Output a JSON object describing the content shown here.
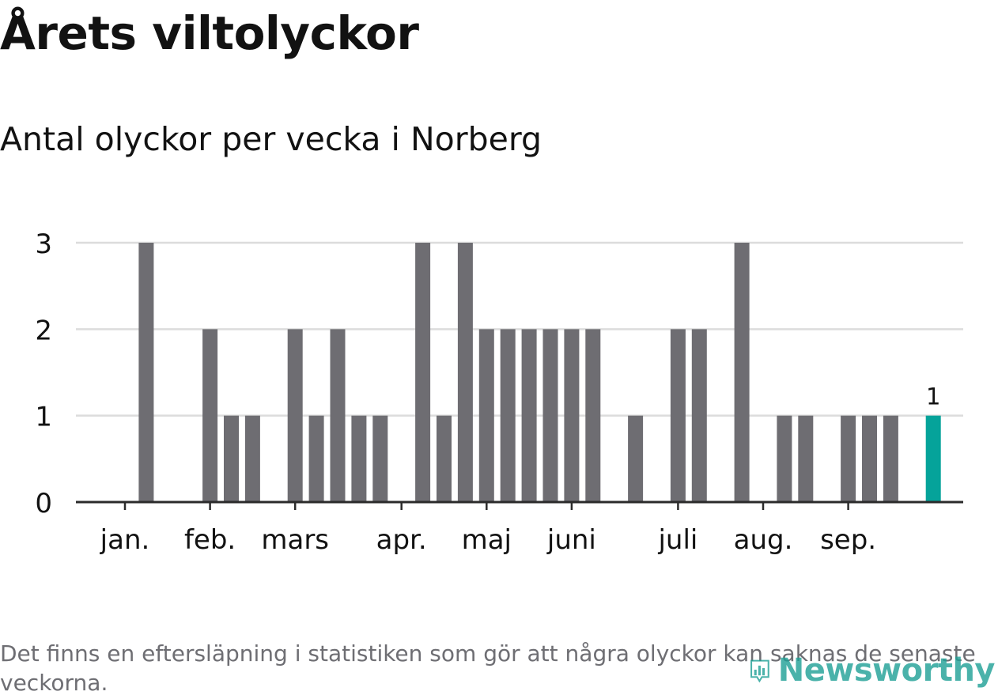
{
  "title": "Årets viltolyckor",
  "subtitle": "Antal olyckor per vecka i Norberg",
  "footnote": "Det finns en eftersläpning i statistiken som gör att några olyckor kan saknas de senaste veckorna.",
  "logo": {
    "text": "Newsworthy",
    "icon": "bar-chart-logo-icon"
  },
  "colors": {
    "bar": "#6e6d72",
    "highlight": "#05a39a",
    "grid": "#dcdcdc",
    "axis": "#2b2b2b",
    "text": "#121212",
    "muted": "#6e6e73"
  },
  "chart_data": {
    "type": "bar",
    "title": "Årets viltolyckor",
    "subtitle": "Antal olyckor per vecka i Norberg",
    "xlabel": "",
    "ylabel": "",
    "ylim": [
      0,
      3
    ],
    "yticks": [
      0,
      1,
      2,
      3
    ],
    "grid": true,
    "weeks": [
      1,
      2,
      3,
      4,
      5,
      6,
      7,
      8,
      9,
      10,
      11,
      12,
      13,
      14,
      15,
      16,
      17,
      18,
      19,
      20,
      21,
      22,
      23,
      24,
      25,
      26,
      27,
      28,
      29,
      30,
      31,
      32,
      33,
      34,
      35,
      36,
      37,
      38,
      39,
      40,
      41
    ],
    "values": [
      0,
      3,
      0,
      0,
      2,
      1,
      1,
      0,
      2,
      1,
      2,
      1,
      1,
      0,
      3,
      1,
      3,
      2,
      2,
      2,
      2,
      2,
      2,
      0,
      1,
      0,
      2,
      2,
      0,
      3,
      0,
      1,
      1,
      0,
      1,
      1,
      1,
      0,
      1,
      0,
      0
    ],
    "highlight_index": 38,
    "highlight_label": "1",
    "month_labels": [
      {
        "label": "jan.",
        "week": 1
      },
      {
        "label": "feb.",
        "week": 5
      },
      {
        "label": "mars",
        "week": 9
      },
      {
        "label": "apr.",
        "week": 14
      },
      {
        "label": "maj",
        "week": 18
      },
      {
        "label": "juni",
        "week": 22
      },
      {
        "label": "juli",
        "week": 27
      },
      {
        "label": "aug.",
        "week": 31
      },
      {
        "label": "sep.",
        "week": 35
      }
    ]
  }
}
